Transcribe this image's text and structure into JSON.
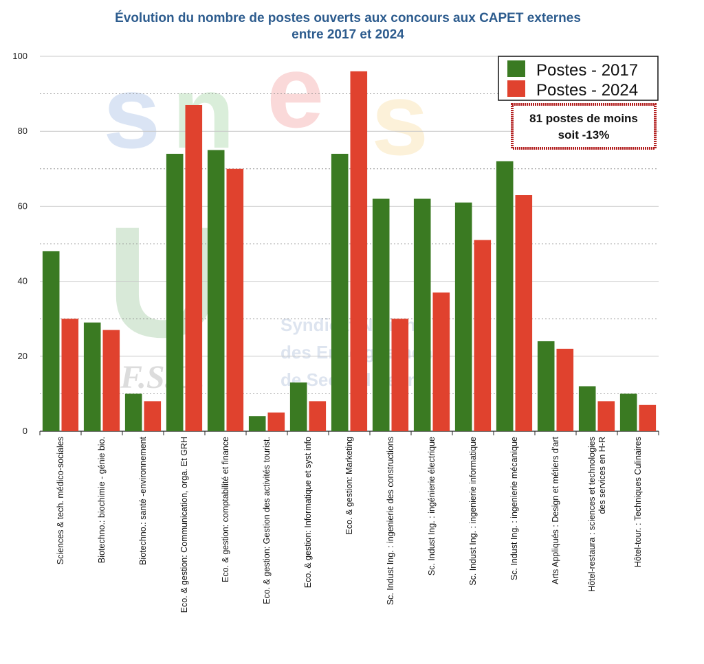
{
  "watermark": {
    "logo_text": "snes",
    "union_text": "FSU",
    "line1": "Syndicat National",
    "line2": "des Enseignements",
    "line3": "de Second degré",
    "fsu": "F.S.U."
  },
  "annotation": {
    "line1": "81 postes de moins",
    "line2": "soit -13%"
  },
  "colors": {
    "series_2017": "#3a7a22",
    "series_2024": "#e0422e",
    "title": "#2d5c8e",
    "note_border": "#b32020"
  },
  "chart_data": {
    "type": "bar",
    "title": "Évolution du nombre de postes ouverts aux concours aux CAPET externes",
    "subtitle": "entre 2017 et 2024",
    "xlabel": "",
    "ylabel": "",
    "ylim": [
      0,
      100
    ],
    "yticks": [
      0,
      20,
      40,
      60,
      80,
      100
    ],
    "grid": true,
    "legend_position": "top-right",
    "categories": [
      [
        "Sciences & tech. médico-sociales"
      ],
      [
        "Biotechno.: biochimie - génie bio."
      ],
      [
        "Biotechno.: santé -environnement"
      ],
      [
        "Eco. & gestion: Communication, orga. Et GRH"
      ],
      [
        "Eco. & gestion: comptabilité et finance"
      ],
      [
        "Eco. & gestion: Gestion des activités tourist."
      ],
      [
        "Eco. & gestion: Informatique et syst info"
      ],
      [
        "Eco. & gestion: Marketing"
      ],
      [
        "Sc. Indust Ing. : ingenierie des constructions"
      ],
      [
        "Sc. Indust Ing. : ingénierie électrique"
      ],
      [
        "Sc. Indust Ing. : ingenierie informatique"
      ],
      [
        "Sc. Indust Ing. : ingenierie mécanique"
      ],
      [
        "Arts Appliqués : Design et métiers d'art"
      ],
      [
        "Hôtel-restaura : sciences et technologies",
        "des services en H-R"
      ],
      [
        "Hôtel-tour. : Techniques Culinaires"
      ]
    ],
    "series": [
      {
        "name": "Postes - 2017",
        "values": [
          48,
          29,
          10,
          74,
          75,
          4,
          13,
          74,
          62,
          62,
          61,
          72,
          24,
          12,
          10
        ]
      },
      {
        "name": "Postes - 2024",
        "values": [
          30,
          27,
          8,
          87,
          70,
          5,
          8,
          96,
          30,
          37,
          51,
          63,
          22,
          8,
          7
        ]
      }
    ]
  }
}
